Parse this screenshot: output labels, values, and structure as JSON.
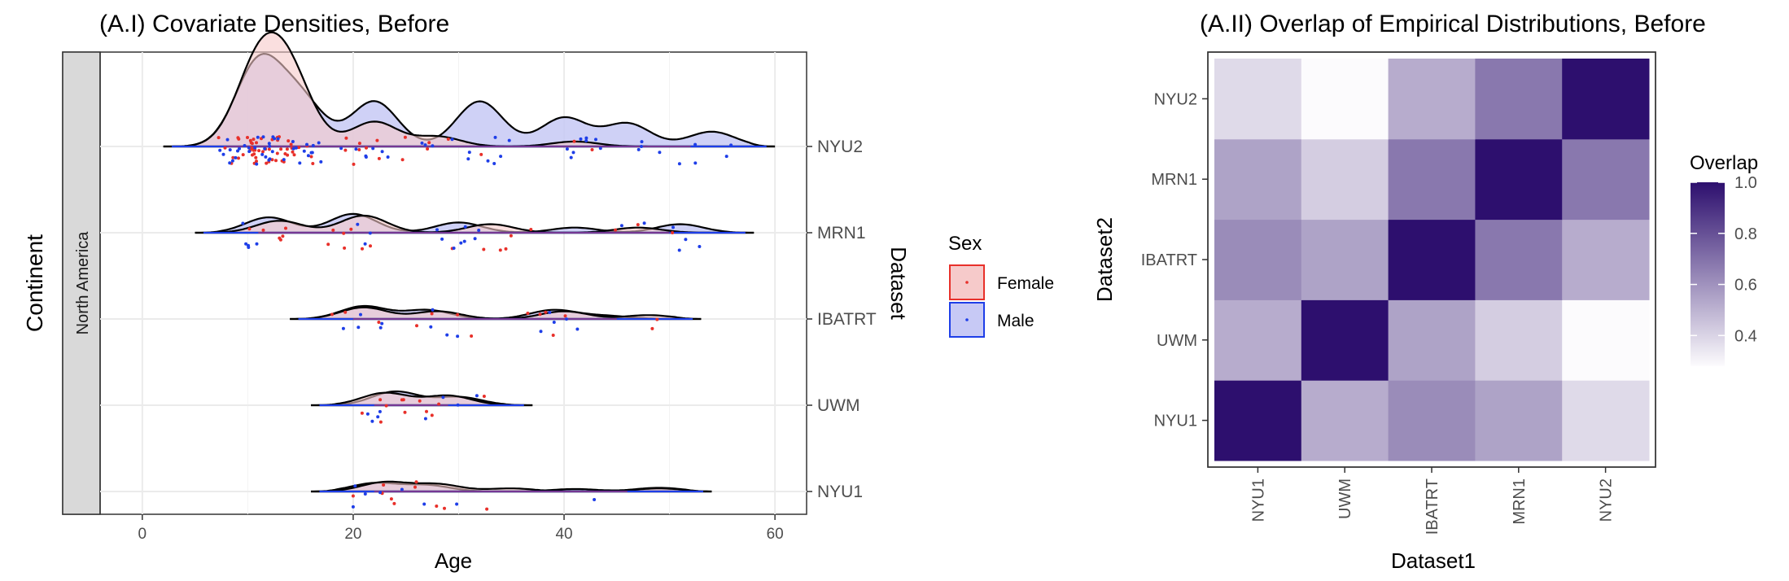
{
  "chart_data": [
    {
      "type": "ridgeline-density",
      "title": "(A.I) Covariate Densities, Before",
      "xlabel": "Age",
      "ylabel": "Continent",
      "right_axis_label": "Dataset",
      "facet_label": "North America",
      "xlim": [
        -4,
        63
      ],
      "x_ticks": [
        0,
        20,
        40,
        60
      ],
      "grid": true,
      "legend": {
        "title": "Sex",
        "position": "right",
        "entries": [
          {
            "name": "Female",
            "color": "#E8302A",
            "fill": "#F6CACA"
          },
          {
            "name": "Male",
            "color": "#1E3EE8",
            "fill": "#C7C9F5"
          }
        ]
      },
      "datasets": [
        {
          "name": "NYU2",
          "range": [
            2,
            60
          ],
          "female_peaks": [
            [
              11,
              0.95
            ],
            [
              14,
              0.8
            ],
            [
              22,
              0.3
            ],
            [
              28,
              0.12
            ],
            [
              41,
              0.06
            ]
          ],
          "male_peaks": [
            [
              11,
              1.0
            ],
            [
              15,
              0.55
            ],
            [
              22,
              0.55
            ],
            [
              32,
              0.55
            ],
            [
              40,
              0.35
            ],
            [
              46,
              0.28
            ],
            [
              54,
              0.18
            ]
          ],
          "scale": 2.4
        },
        {
          "name": "MRN1",
          "range": [
            5,
            58
          ],
          "female_peaks": [
            [
              13,
              0.35
            ],
            [
              21,
              0.5
            ],
            [
              33,
              0.25
            ],
            [
              47,
              0.15
            ]
          ],
          "male_peaks": [
            [
              12,
              0.45
            ],
            [
              20,
              0.55
            ],
            [
              30,
              0.3
            ],
            [
              41,
              0.15
            ],
            [
              51,
              0.25
            ]
          ],
          "scale": 1.0
        },
        {
          "name": "IBATRT",
          "range": [
            14,
            53
          ],
          "female_peaks": [
            [
              21,
              0.45
            ],
            [
              28,
              0.3
            ],
            [
              40,
              0.3
            ],
            [
              48,
              0.15
            ]
          ],
          "male_peaks": [
            [
              21,
              0.5
            ],
            [
              27,
              0.35
            ],
            [
              39,
              0.35
            ],
            [
              44,
              0.12
            ]
          ],
          "scale": 0.75
        },
        {
          "name": "UWM",
          "range": [
            16,
            37
          ],
          "female_peaks": [
            [
              23,
              0.45
            ],
            [
              29,
              0.35
            ]
          ],
          "male_peaks": [
            [
              24,
              0.5
            ],
            [
              30,
              0.3
            ]
          ],
          "scale": 0.8
        },
        {
          "name": "NYU1",
          "range": [
            16,
            54
          ],
          "female_peaks": [
            [
              23,
              0.45
            ],
            [
              28,
              0.35
            ],
            [
              35,
              0.15
            ],
            [
              49,
              0.15
            ]
          ],
          "male_peaks": [
            [
              22,
              0.4
            ],
            [
              27,
              0.3
            ],
            [
              41,
              0.12
            ],
            [
              49,
              0.18
            ]
          ],
          "scale": 0.6
        }
      ]
    },
    {
      "type": "heatmap",
      "title": "(A.II) Overlap of Empirical Distributions, Before",
      "xlabel": "Dataset1",
      "ylabel": "Dataset2",
      "x_categories": [
        "NYU1",
        "UWM",
        "IBATRT",
        "MRN1",
        "NYU2"
      ],
      "y_categories": [
        "NYU1",
        "UWM",
        "IBATRT",
        "MRN1",
        "NYU2"
      ],
      "values": [
        [
          1.0,
          0.52,
          0.62,
          0.55,
          0.38
        ],
        [
          0.52,
          1.0,
          0.55,
          0.42,
          0.28
        ],
        [
          0.62,
          0.55,
          1.0,
          0.68,
          0.52
        ],
        [
          0.55,
          0.42,
          0.68,
          1.0,
          0.68
        ],
        [
          0.38,
          0.28,
          0.52,
          0.68,
          1.0
        ]
      ],
      "colorbar": {
        "title": "Overlap",
        "min": 0.28,
        "max": 1.0,
        "ticks": [
          "0.4",
          "0.6",
          "0.8",
          "1.0"
        ],
        "low_color": "#FCFBFD",
        "high_color": "#2D0F6E"
      }
    }
  ]
}
